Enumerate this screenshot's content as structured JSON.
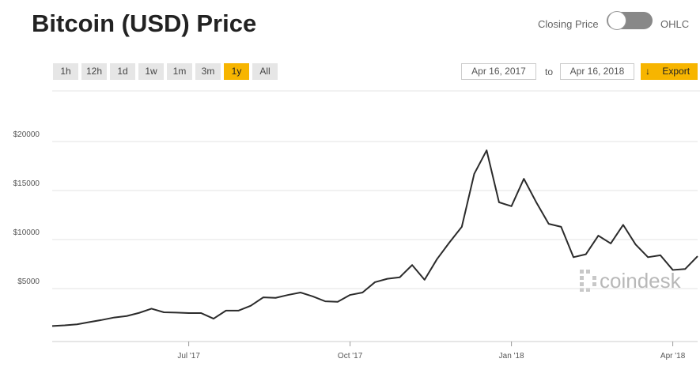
{
  "header": {
    "title": "Bitcoin (USD) Price",
    "toggle_left": "Closing Price",
    "toggle_right": "OHLC"
  },
  "controls": {
    "ranges": [
      "1h",
      "12h",
      "1d",
      "1w",
      "1m",
      "3m",
      "1y",
      "All"
    ],
    "selected_range": 6,
    "from": "Apr 16, 2017",
    "to_label": "to",
    "to": "Apr 16, 2018",
    "export": "Export",
    "watermark": "coindesk"
  },
  "chart_data": {
    "type": "line",
    "categories": [
      null,
      null,
      null,
      null,
      null,
      null,
      null,
      null,
      null,
      null,
      null,
      "Jul '17",
      null,
      null,
      null,
      null,
      null,
      null,
      null,
      null,
      null,
      null,
      null,
      null,
      "Oct '17",
      null,
      null,
      null,
      null,
      null,
      null,
      null,
      null,
      null,
      null,
      null,
      null,
      "Jan '18",
      null,
      null,
      null,
      null,
      null,
      null,
      null,
      null,
      null,
      null,
      null,
      null,
      "Apr '18",
      null,
      null
    ],
    "series": [
      {
        "name": "Closing Price",
        "color": "#2b2b2b",
        "values": [
          1180,
          1250,
          1350,
          1580,
          1800,
          2050,
          2200,
          2520,
          2950,
          2580,
          2550,
          2500,
          2500,
          1930,
          2750,
          2750,
          3250,
          4100,
          4050,
          4350,
          4600,
          4200,
          3700,
          3650,
          4350,
          4600,
          5650,
          6000,
          6150,
          7400,
          5900,
          8000,
          9700,
          11300,
          16700,
          19100,
          13800,
          13400,
          16200,
          13800,
          11600,
          11300,
          8200,
          8500,
          10400,
          9600,
          11500,
          9500,
          8200,
          8400,
          6900,
          7000,
          8300
        ]
      }
    ],
    "ylim": [
      0,
      25000
    ],
    "yticks": [
      {
        "value": 5000,
        "label": "$5000"
      },
      {
        "value": 10000,
        "label": "$10000"
      },
      {
        "value": 15000,
        "label": "$15000"
      },
      {
        "value": 20000,
        "label": "$20000"
      }
    ],
    "grid": true
  }
}
